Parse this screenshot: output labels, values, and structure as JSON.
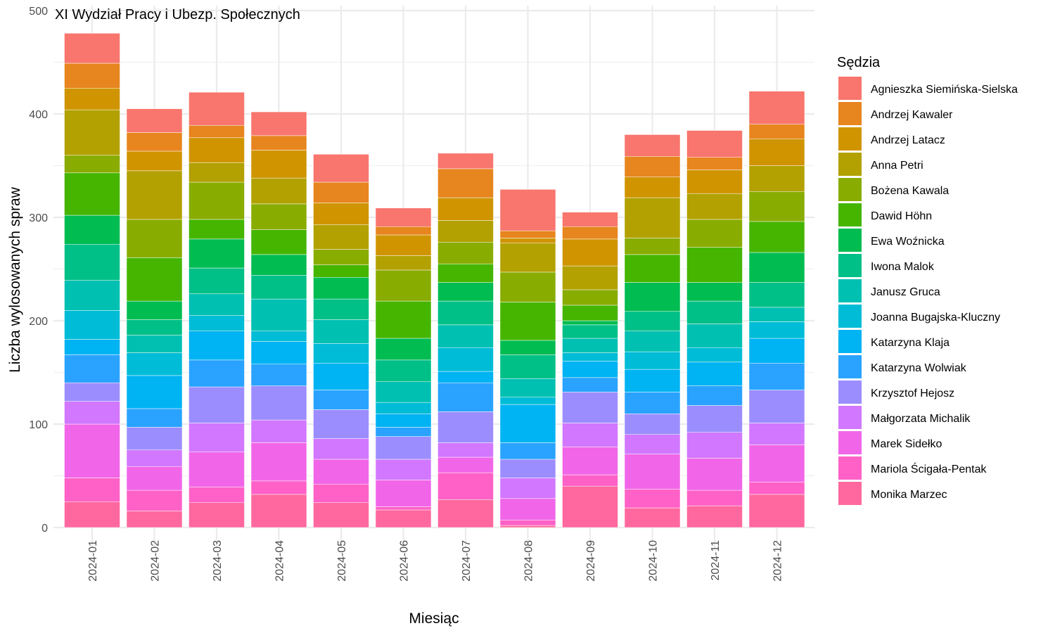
{
  "chart_data": {
    "type": "bar",
    "stacked": true,
    "title": "XI Wydział Pracy i Ubezp. Społecznych",
    "xlabel": "Miesiąc",
    "ylabel": "Liczba wylosowanych spraw",
    "ylim": [
      0,
      500
    ],
    "yticks": [
      0,
      100,
      200,
      300,
      400,
      500
    ],
    "grid": true,
    "legend_title": "Sędzia",
    "legend_position": "right",
    "categories": [
      "2024-01",
      "2024-02",
      "2024-03",
      "2024-04",
      "2024-05",
      "2024-06",
      "2024-07",
      "2024-08",
      "2024-09",
      "2024-10",
      "2024-11",
      "2024-12"
    ],
    "series": [
      {
        "name": "Agnieszka Siemińska-Sielska",
        "color": "#F8766D",
        "values": [
          29,
          23,
          32,
          23,
          27,
          18,
          15,
          40,
          14,
          21,
          26,
          32
        ]
      },
      {
        "name": "Andrzej Kawaler",
        "color": "#E7851E",
        "values": [
          24,
          18,
          12,
          14,
          20,
          8,
          28,
          7,
          12,
          20,
          12,
          14
        ]
      },
      {
        "name": "Andrzej Latacz",
        "color": "#D09400",
        "values": [
          21,
          19,
          24,
          27,
          21,
          20,
          22,
          5,
          26,
          20,
          23,
          26
        ]
      },
      {
        "name": "Anna Petri",
        "color": "#B2A100",
        "values": [
          44,
          47,
          19,
          25,
          24,
          14,
          21,
          28,
          23,
          39,
          25,
          25
        ]
      },
      {
        "name": "Bożena Kawala",
        "color": "#89AC00",
        "values": [
          17,
          37,
          36,
          25,
          15,
          30,
          21,
          29,
          15,
          16,
          27,
          29
        ]
      },
      {
        "name": "Dawid Höhn",
        "color": "#45B500",
        "values": [
          41,
          42,
          19,
          24,
          12,
          36,
          18,
          37,
          15,
          27,
          34,
          30
        ]
      },
      {
        "name": "Ewa Woźnicka",
        "color": "#00BC51",
        "values": [
          28,
          18,
          28,
          20,
          21,
          21,
          18,
          14,
          4,
          28,
          18,
          29
        ]
      },
      {
        "name": "Iwona Malok",
        "color": "#00C087",
        "values": [
          35,
          15,
          25,
          23,
          20,
          21,
          23,
          23,
          13,
          19,
          22,
          24
        ]
      },
      {
        "name": "Janusz Gruca",
        "color": "#00C0B2",
        "values": [
          29,
          17,
          21,
          31,
          23,
          20,
          22,
          18,
          14,
          20,
          23,
          14
        ]
      },
      {
        "name": "Joanna Bugajska-Kluczny",
        "color": "#00BCD6",
        "values": [
          28,
          22,
          15,
          10,
          19,
          11,
          23,
          7,
          8,
          17,
          14,
          16
        ]
      },
      {
        "name": "Katarzyna Klaja",
        "color": "#00B3F2",
        "values": [
          15,
          32,
          28,
          22,
          26,
          13,
          11,
          37,
          16,
          22,
          23,
          24
        ]
      },
      {
        "name": "Katarzyna Wolwiak",
        "color": "#29A3FF",
        "values": [
          27,
          18,
          26,
          21,
          19,
          9,
          28,
          16,
          14,
          21,
          19,
          26
        ]
      },
      {
        "name": "Krzysztof Hejosz",
        "color": "#9C8DFF",
        "values": [
          18,
          22,
          35,
          33,
          28,
          22,
          30,
          18,
          30,
          20,
          26,
          32
        ]
      },
      {
        "name": "Małgorzata Michalik",
        "color": "#D277FF",
        "values": [
          22,
          16,
          28,
          22,
          20,
          20,
          14,
          20,
          23,
          19,
          25,
          21
        ]
      },
      {
        "name": "Marek Sidełko",
        "color": "#F166E8",
        "values": [
          52,
          23,
          34,
          37,
          24,
          26,
          15,
          21,
          27,
          34,
          31,
          36
        ]
      },
      {
        "name": "Mariola Ścigała-Pentak",
        "color": "#FF61C7",
        "values": [
          23,
          20,
          15,
          13,
          18,
          3,
          26,
          5,
          11,
          18,
          15,
          12
        ]
      },
      {
        "name": "Monika Marzec",
        "color": "#FF689E",
        "values": [
          25,
          16,
          24,
          32,
          24,
          17,
          27,
          2,
          40,
          19,
          21,
          32
        ]
      }
    ]
  }
}
